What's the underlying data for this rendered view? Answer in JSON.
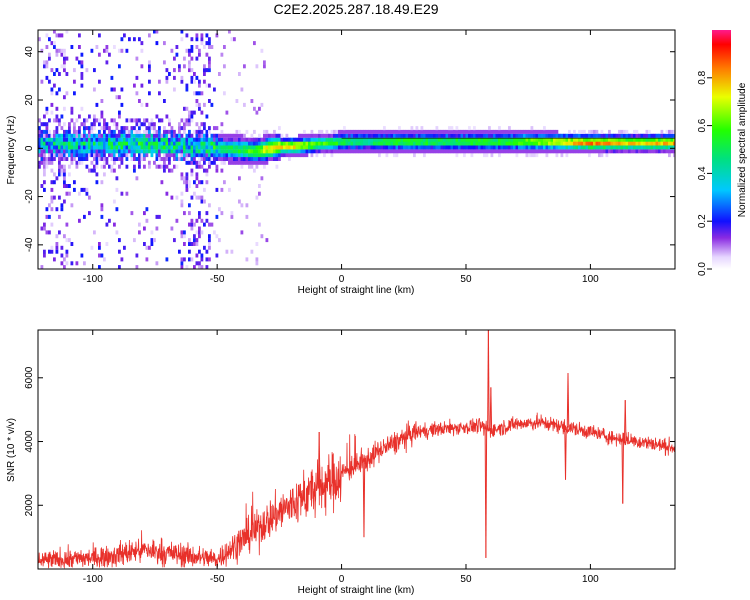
{
  "title": "C2E2.2025.287.18.49.E29",
  "chart_data": [
    {
      "type": "heatmap",
      "xlabel": "Height of straight line (km)",
      "ylabel": "Frequency (Hz)",
      "xlim": [
        -122,
        134
      ],
      "ylim": [
        -50,
        49
      ],
      "x_ticks": [
        -100,
        -50,
        0,
        50,
        100
      ],
      "x_tick_labels": [
        "-100",
        "-50",
        "0",
        "50",
        "100"
      ],
      "y_ticks": [
        -40,
        -20,
        0,
        20,
        40
      ],
      "y_tick_labels": [
        "-40",
        "-20",
        "0",
        "20",
        "40"
      ],
      "colorbar": {
        "label": "Normalized spectral amplitude",
        "range": [
          0,
          1
        ],
        "ticks": [
          0.0,
          0.2,
          0.4,
          0.6,
          0.8
        ],
        "tick_labels": [
          "0.0",
          "0.2",
          "0.4",
          "0.6",
          "0.8"
        ]
      },
      "ridge": {
        "x": [
          -122,
          -100,
          -80,
          -60,
          -45,
          -35,
          -30,
          -25,
          -20,
          -10,
          0,
          10,
          20,
          40,
          55,
          60,
          80,
          100,
          120,
          134
        ],
        "center_hz": [
          1,
          1,
          1,
          0,
          -1,
          -2,
          -1,
          0,
          0,
          1,
          2,
          2,
          2,
          2,
          2,
          2,
          2,
          1.5,
          1.5,
          1.5
        ],
        "peak_amplitude": [
          0.35,
          0.4,
          0.45,
          0.4,
          0.5,
          0.6,
          0.75,
          0.8,
          0.75,
          0.6,
          0.55,
          0.5,
          0.6,
          0.55,
          0.6,
          0.55,
          0.7,
          0.85,
          0.75,
          0.8
        ]
      }
    },
    {
      "type": "line",
      "xlabel": "Height of straight line (km)",
      "ylabel": "SNR (10 * v/v)",
      "xlim": [
        -122,
        134
      ],
      "ylim": [
        0,
        7500
      ],
      "x_ticks": [
        -100,
        -50,
        0,
        50,
        100
      ],
      "x_tick_labels": [
        "-100",
        "-50",
        "0",
        "50",
        "100"
      ],
      "y_ticks": [
        2000,
        4000,
        6000
      ],
      "y_tick_labels": [
        "2000",
        "4000",
        "6000"
      ],
      "color": "#e8302a",
      "trend": {
        "x": [
          -122,
          -110,
          -100,
          -90,
          -80,
          -70,
          -60,
          -50,
          -45,
          -40,
          -35,
          -30,
          -25,
          -20,
          -15,
          -10,
          -5,
          0,
          5,
          10,
          15,
          20,
          25,
          30,
          40,
          50,
          55,
          60,
          70,
          80,
          90,
          100,
          110,
          120,
          134
        ],
        "y": [
          250,
          300,
          350,
          450,
          600,
          500,
          400,
          300,
          600,
          900,
          1200,
          1500,
          1800,
          2000,
          2300,
          2500,
          2700,
          3000,
          3200,
          3400,
          3700,
          3900,
          4100,
          4300,
          4400,
          4450,
          4500,
          4350,
          4550,
          4600,
          4450,
          4300,
          4100,
          4000,
          3800
        ]
      },
      "spikes": [
        {
          "x": -9,
          "y": 4300
        },
        {
          "x": 9,
          "y": 1000
        },
        {
          "x": 58,
          "y": 350
        },
        {
          "x": 59,
          "y": 7550
        },
        {
          "x": 60,
          "y": 5700
        },
        {
          "x": 90,
          "y": 2800
        },
        {
          "x": 91,
          "y": 6150
        },
        {
          "x": 113,
          "y": 2050
        },
        {
          "x": 114,
          "y": 5300
        }
      ]
    }
  ]
}
